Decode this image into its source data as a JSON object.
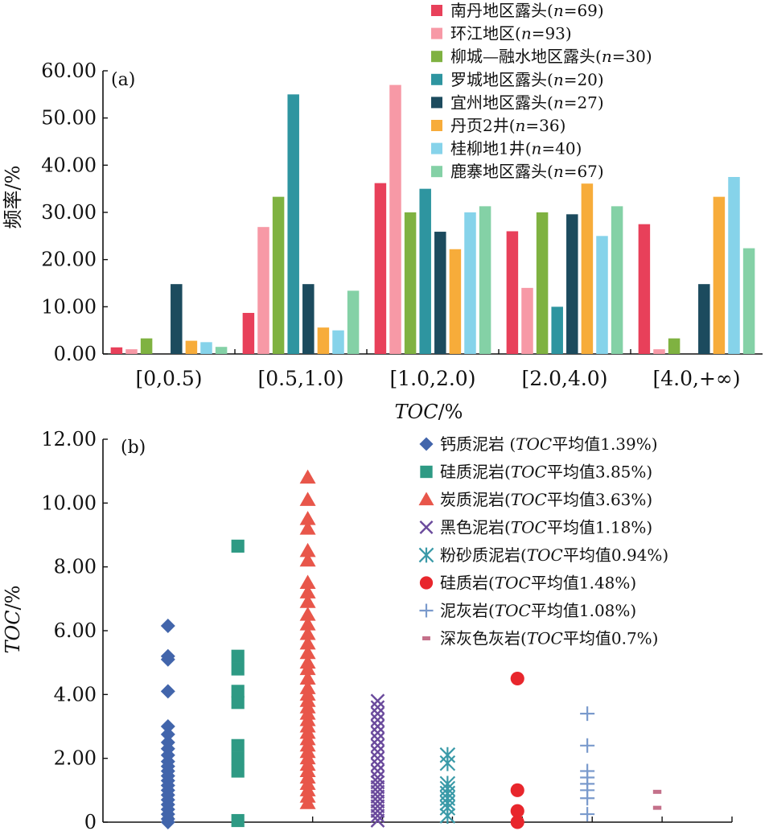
{
  "chart_data": [
    {
      "type": "bar",
      "panel_label": "(a)",
      "categories": [
        "[0,0.5)",
        "[0.5,1.0)",
        "[1.0,2.0)",
        "[2.0,4.0)",
        "[4.0,+∞)"
      ],
      "xlabel": "TOC/%",
      "ylabel": "频率/%",
      "ylim": [
        0,
        60
      ],
      "yticks": [
        "0.00",
        "10.00",
        "20.00",
        "30.00",
        "40.00",
        "50.00",
        "60.00"
      ],
      "legend_position": "top-right",
      "series": [
        {
          "name": "南丹地区露头(n=69)",
          "color": "#e8405a",
          "values": [
            1.4,
            8.7,
            36.2,
            26.0,
            27.5
          ]
        },
        {
          "name": "环江地区(n=93)",
          "color": "#f799a6",
          "values": [
            1.0,
            26.9,
            57.0,
            14.0,
            1.0
          ]
        },
        {
          "name": "柳城—融水地区露头(n=30)",
          "color": "#7fb241",
          "values": [
            3.3,
            33.3,
            30.0,
            30.0,
            3.3
          ]
        },
        {
          "name": "罗城地区露头(n=20)",
          "color": "#2e95a0",
          "values": [
            0,
            55.0,
            35.0,
            10.0,
            0
          ]
        },
        {
          "name": "宜州地区露头(n=27)",
          "color": "#1c4b5e",
          "values": [
            14.8,
            14.8,
            25.9,
            29.6,
            14.8
          ]
        },
        {
          "name": "丹页2井(n=36)",
          "color": "#f7ac3a",
          "values": [
            2.8,
            5.6,
            22.2,
            36.1,
            33.3
          ]
        },
        {
          "name": "桂柳地1井(n=40)",
          "color": "#86d3ea",
          "values": [
            2.5,
            5.0,
            30.0,
            25.0,
            37.5
          ]
        },
        {
          "name": "鹿寨地区露头(n=67)",
          "color": "#84d1a6",
          "values": [
            1.5,
            13.4,
            31.3,
            31.3,
            22.4
          ]
        }
      ]
    },
    {
      "type": "scatter",
      "panel_label": "(b)",
      "ylabel": "TOC/%",
      "ylim": [
        0,
        12
      ],
      "yticks": [
        "0",
        "2.00",
        "4.00",
        "6.00",
        "8.00",
        "10.00",
        "12.00"
      ],
      "legend_position": "top-right",
      "series": [
        {
          "name": "钙质泥岩 (TOC平均值1.39%)",
          "marker": "diamond",
          "color": "#4265ab",
          "values": [
            6.15,
            5.2,
            5.1,
            4.1,
            3.0,
            2.75,
            2.5,
            2.3,
            2.1,
            1.9,
            1.75,
            1.6,
            1.45,
            1.3,
            1.15,
            1.0,
            0.85,
            0.7,
            0.55,
            0.4,
            0.25,
            0.1,
            0.0
          ]
        },
        {
          "name": "硅质泥岩(TOC平均值3.85%)",
          "marker": "square",
          "color": "#2e9a84",
          "values": [
            8.65,
            5.2,
            4.8,
            4.1,
            3.75,
            2.4,
            2.0,
            1.6,
            0.05
          ]
        },
        {
          "name": "炭质泥岩(TOC平均值3.63%)",
          "marker": "triangle",
          "color": "#e8564a",
          "values": [
            10.8,
            10.1,
            9.5,
            9.2,
            8.5,
            8.2,
            7.5,
            7.2,
            6.9,
            6.5,
            6.2,
            5.9,
            5.6,
            5.3,
            5.0,
            4.8,
            4.5,
            4.2,
            4.0,
            3.8,
            3.6,
            3.4,
            3.2,
            3.0,
            2.8,
            2.6,
            2.4,
            2.2,
            2.0,
            1.8,
            1.6,
            1.4,
            1.2,
            1.0,
            0.8,
            0.6
          ]
        },
        {
          "name": "黑色泥岩(TOC平均值1.18%)",
          "marker": "x",
          "color": "#6a4a9c",
          "values": [
            3.8,
            3.6,
            3.4,
            3.2,
            3.0,
            2.8,
            2.6,
            2.4,
            2.2,
            2.0,
            1.8,
            1.6,
            1.4,
            1.25,
            1.1,
            0.95,
            0.8,
            0.65,
            0.5,
            0.35,
            0.2,
            0.05
          ]
        },
        {
          "name": "粉砂质泥岩(TOC平均值0.94%)",
          "marker": "asterisk",
          "color": "#3a9aa8",
          "values": [
            2.1,
            1.85,
            1.2,
            1.05,
            0.9,
            0.75,
            0.6,
            0.45,
            0.2
          ]
        },
        {
          "name": "硅质岩(TOC平均值1.48%)",
          "marker": "circle",
          "color": "#e8262c",
          "values": [
            4.5,
            1.0,
            0.35,
            0.0
          ]
        },
        {
          "name": "泥灰岩(TOC平均值1.08%)",
          "marker": "plus",
          "color": "#7a9acc",
          "values": [
            3.4,
            2.4,
            1.6,
            1.4,
            1.2,
            1.0,
            0.75,
            0.25
          ]
        },
        {
          "name": "深灰色灰岩(TOC平均值0.7%)",
          "marker": "dash",
          "color": "#c4708a",
          "values": [
            0.95,
            0.45
          ]
        }
      ]
    }
  ]
}
